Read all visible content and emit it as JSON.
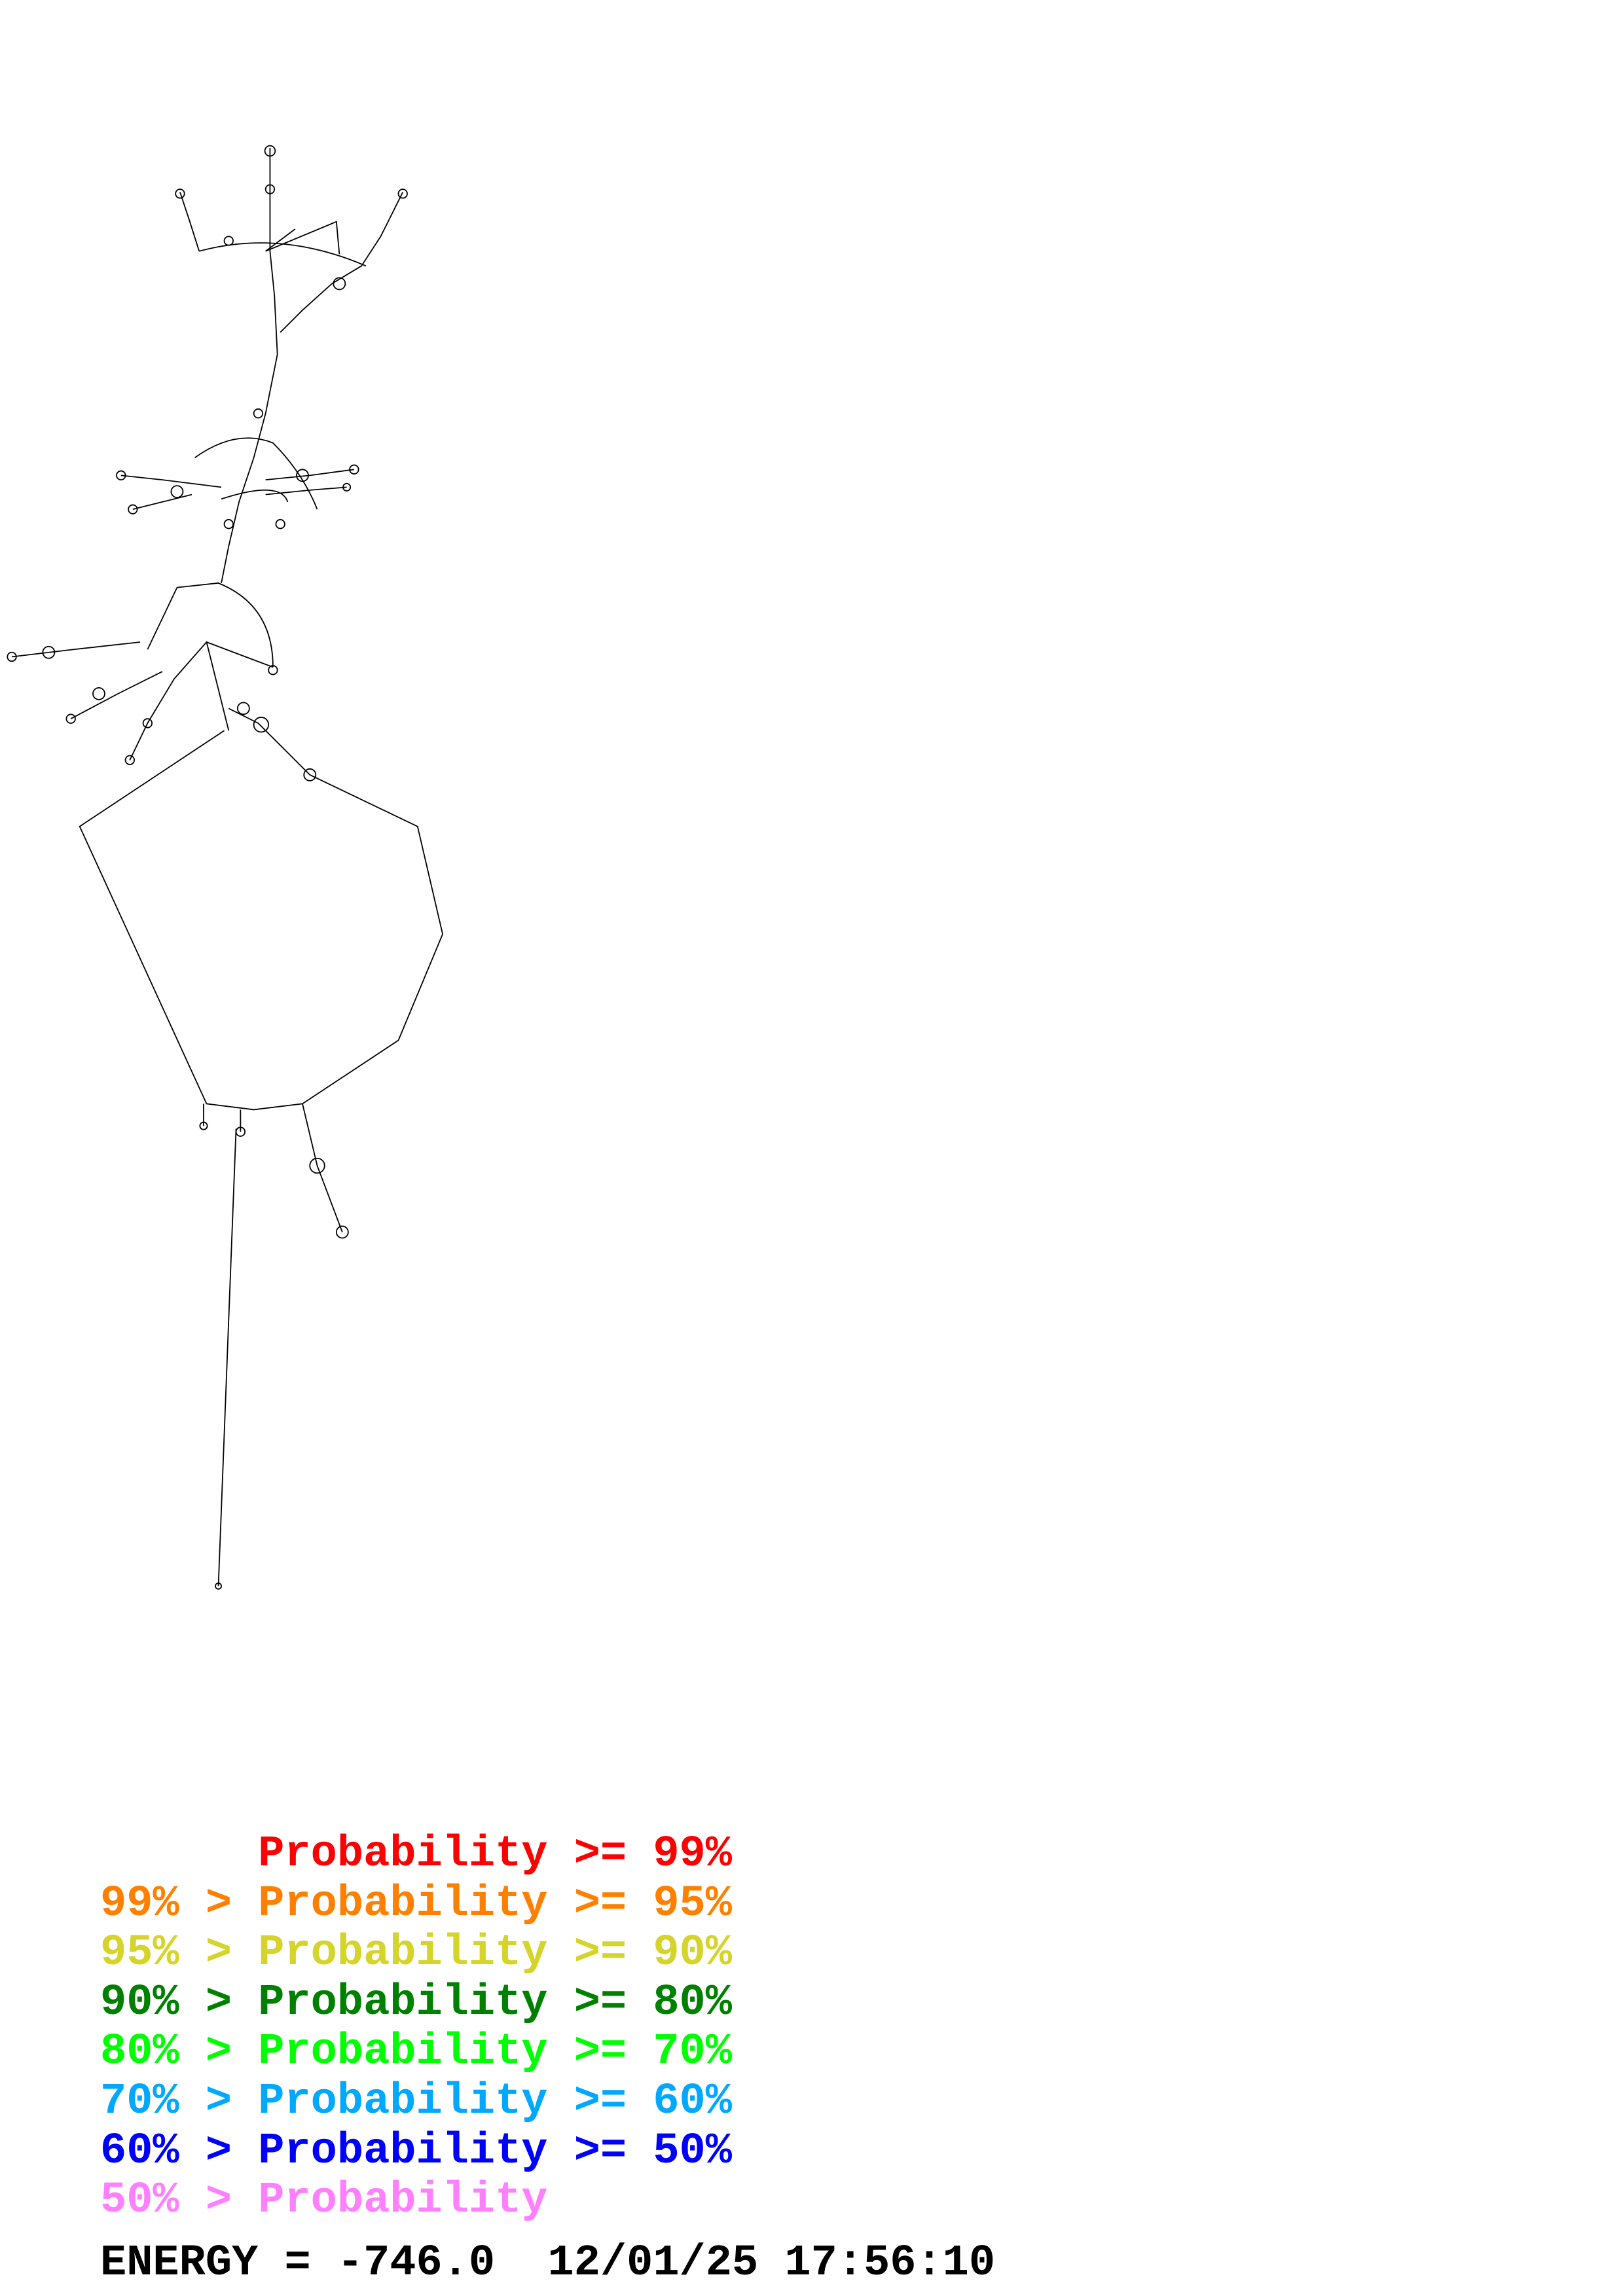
{
  "legend": {
    "rows": [
      {
        "text": "      Probability >= 99%",
        "color": "#ff0000"
      },
      {
        "text": "99% > Probability >= 95%",
        "color": "#ff8000"
      },
      {
        "text": "95% > Probability >= 90%",
        "color": "#d4d42a"
      },
      {
        "text": "90% > Probability >= 80%",
        "color": "#008000"
      },
      {
        "text": "80% > Probability >= 70%",
        "color": "#00ff00"
      },
      {
        "text": "70% > Probability >= 60%",
        "color": "#00a8ff"
      },
      {
        "text": "60% > Probability >= 50%",
        "color": "#0000ff"
      },
      {
        "text": "50% > Probability",
        "color": "#ff80ff"
      }
    ]
  },
  "footer": {
    "energy_line": "ENERGY = -746.0  12/01/25 17:56:10"
  },
  "structure": {
    "stroke_color": "#000000"
  }
}
